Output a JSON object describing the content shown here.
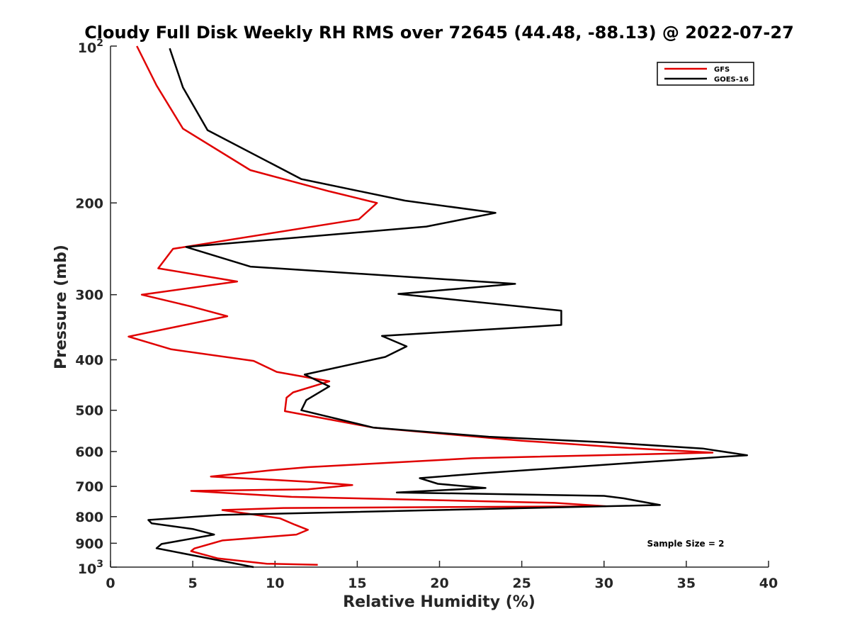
{
  "chart_data": {
    "type": "line",
    "title": "Cloudy Full Disk Weekly RH RMS over 72645 (44.48, -88.13) @ 2022-07-27",
    "xlabel": "Relative Humidity (%)",
    "ylabel": "Pressure (mb)",
    "xlim": [
      0,
      40
    ],
    "ylim": [
      100,
      1000
    ],
    "yscale": "log",
    "y_reversed": true,
    "xticks": [
      0,
      5,
      10,
      15,
      20,
      25,
      30,
      35,
      40
    ],
    "yticks": [
      {
        "value": 100,
        "base": "10",
        "exp": "2"
      },
      {
        "value": 200,
        "label": "200"
      },
      {
        "value": 300,
        "label": "300"
      },
      {
        "value": 400,
        "label": "400"
      },
      {
        "value": 500,
        "label": "500"
      },
      {
        "value": 600,
        "label": "600"
      },
      {
        "value": 700,
        "label": "700"
      },
      {
        "value": 800,
        "label": "800"
      },
      {
        "value": 900,
        "label": "900"
      },
      {
        "value": 1000,
        "base": "10",
        "exp": "3"
      }
    ],
    "legend": {
      "location": "top-right"
    },
    "annotation": "Sample Size = 2",
    "series": [
      {
        "name": "GFS",
        "color": "#e00000",
        "points": [
          [
            1.6,
            100
          ],
          [
            2.8,
            119
          ],
          [
            4.4,
            144
          ],
          [
            8.5,
            173
          ],
          [
            13.3,
            190
          ],
          [
            16.2,
            200
          ],
          [
            15.1,
            215
          ],
          [
            3.8,
            245
          ],
          [
            2.9,
            267
          ],
          [
            7.7,
            283
          ],
          [
            1.9,
            300
          ],
          [
            4.9,
            316
          ],
          [
            7.1,
            330
          ],
          [
            1.1,
            361
          ],
          [
            3.7,
            382
          ],
          [
            8.7,
            402
          ],
          [
            10.1,
            422
          ],
          [
            13.3,
            440
          ],
          [
            11.1,
            462
          ],
          [
            10.7,
            473
          ],
          [
            10.6,
            502
          ],
          [
            16,
            540
          ],
          [
            25,
            572
          ],
          [
            32,
            592
          ],
          [
            36.6,
            603
          ],
          [
            22,
            618
          ],
          [
            12,
            643
          ],
          [
            9.7,
            652
          ],
          [
            6.1,
            670
          ],
          [
            12.5,
            687
          ],
          [
            14.7,
            696
          ],
          [
            12,
            709
          ],
          [
            4.9,
            714
          ],
          [
            11,
            733
          ],
          [
            27,
            753
          ],
          [
            30.1,
            764
          ],
          [
            10.5,
            770
          ],
          [
            6.8,
            777
          ],
          [
            10.3,
            806
          ],
          [
            11.2,
            829
          ],
          [
            12,
            848
          ],
          [
            11.3,
            866
          ],
          [
            6.8,
            889
          ],
          [
            5.1,
            921
          ],
          [
            4.9,
            932
          ],
          [
            6.5,
            962
          ],
          [
            9.5,
            985
          ],
          [
            12.6,
            990
          ]
        ]
      },
      {
        "name": "GOES-16",
        "color": "#000000",
        "points": [
          [
            3.6,
            101
          ],
          [
            4.4,
            120
          ],
          [
            5.9,
            145
          ],
          [
            11.6,
            180
          ],
          [
            17.9,
            198
          ],
          [
            23.4,
            209
          ],
          [
            19.2,
            222
          ],
          [
            4.6,
            243
          ],
          [
            8.5,
            265
          ],
          [
            24.6,
            286
          ],
          [
            17.5,
            299
          ],
          [
            27.4,
            322
          ],
          [
            27.4,
            343
          ],
          [
            16.5,
            360
          ],
          [
            18.0,
            377
          ],
          [
            16.7,
            395
          ],
          [
            11.8,
            427
          ],
          [
            13.3,
            450
          ],
          [
            11.9,
            478
          ],
          [
            11.6,
            500
          ],
          [
            16,
            540
          ],
          [
            23,
            562
          ],
          [
            30,
            576
          ],
          [
            36,
            592
          ],
          [
            38.7,
            610
          ],
          [
            32,
            630
          ],
          [
            22.7,
            660
          ],
          [
            18.8,
            675
          ],
          [
            19.9,
            692
          ],
          [
            22.8,
            705
          ],
          [
            17.4,
            719
          ],
          [
            30,
            730
          ],
          [
            31.2,
            738
          ],
          [
            33.4,
            760
          ],
          [
            6.7,
            794
          ],
          [
            2.3,
            812
          ],
          [
            2.5,
            824
          ],
          [
            5,
            845
          ],
          [
            6.3,
            866
          ],
          [
            3.1,
            903
          ],
          [
            2.8,
            920
          ],
          [
            8.7,
            1000
          ]
        ]
      }
    ]
  }
}
